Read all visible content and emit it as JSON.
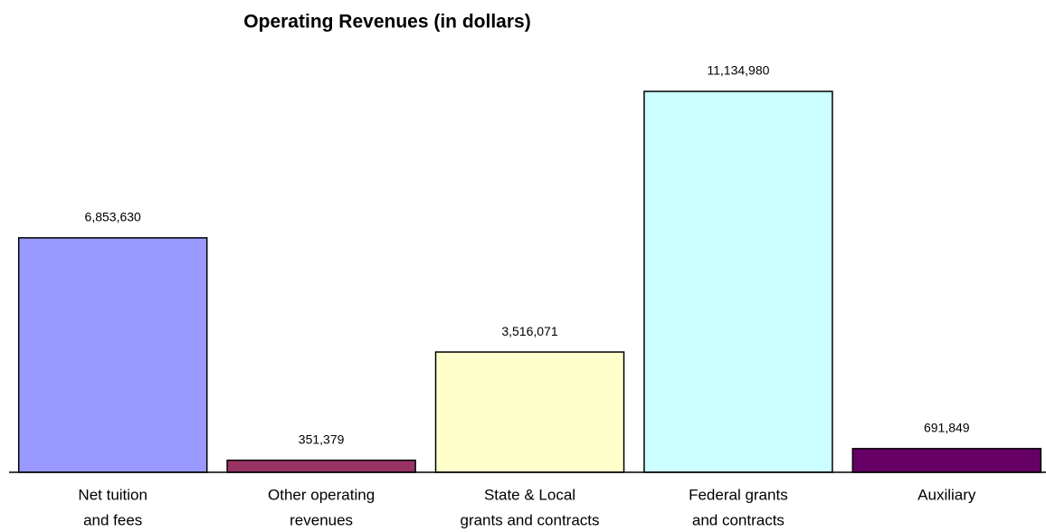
{
  "chart_data": {
    "type": "bar",
    "title": "Operating Revenues (in dollars)",
    "categories": [
      [
        "Net tuition",
        "and fees"
      ],
      [
        "Other operating",
        "revenues"
      ],
      [
        "State & Local",
        "grants and contracts"
      ],
      [
        "Federal grants",
        "and contracts"
      ],
      [
        "Auxiliary"
      ]
    ],
    "values": [
      6853630,
      351379,
      3516071,
      11134980,
      691849
    ],
    "value_labels": [
      "6,853,630",
      "351,379",
      "3,516,071",
      "11,134,980",
      "691,849"
    ],
    "colors": [
      "#9999ff",
      "#993366",
      "#ffffcc",
      "#ccffff",
      "#660066"
    ]
  }
}
